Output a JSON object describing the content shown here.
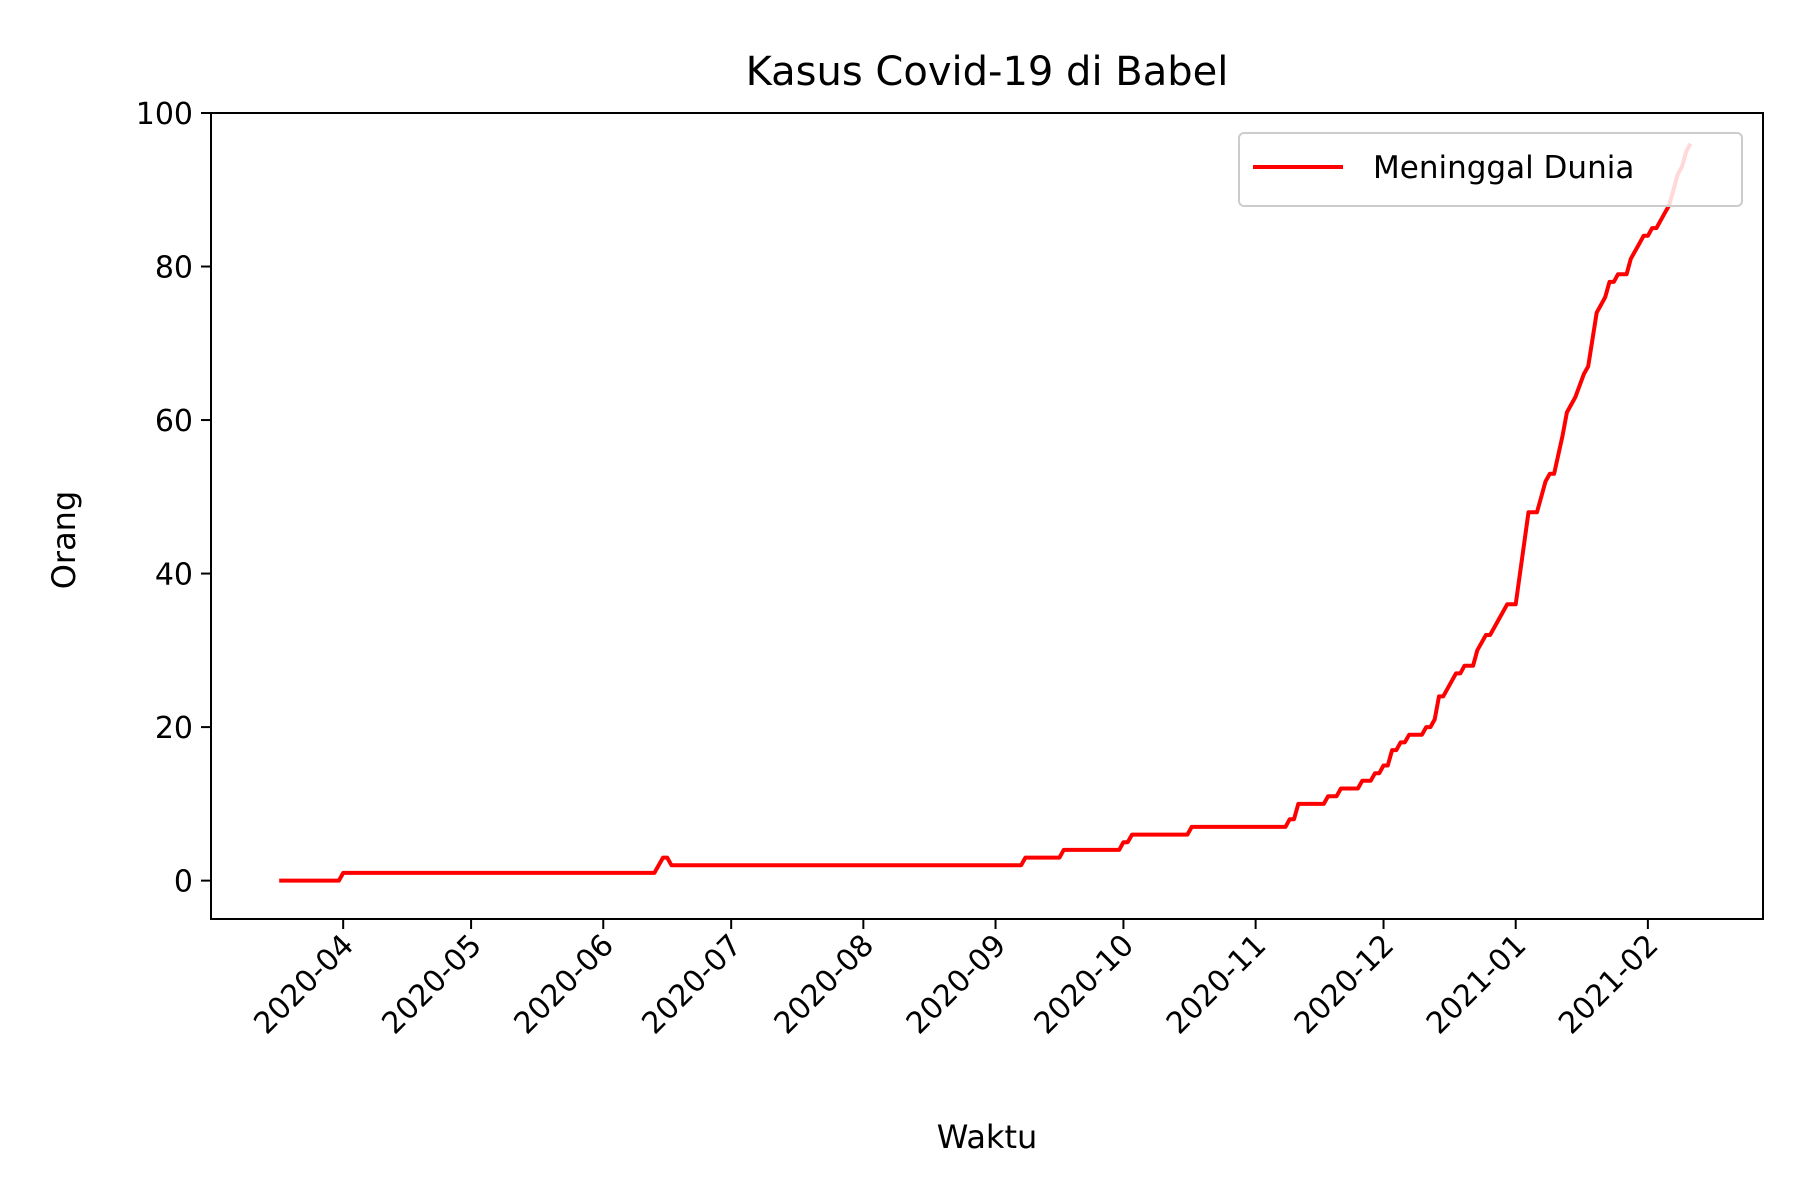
{
  "chart_data": {
    "type": "line",
    "title": "Kasus Covid-19 di Babel",
    "xlabel": "Waktu",
    "ylabel": "Orang",
    "x_range": [
      "2020-03-01",
      "2021-02-28"
    ],
    "ylim": [
      -5,
      100
    ],
    "yticks": [
      0,
      20,
      40,
      60,
      80,
      100
    ],
    "xticks": [
      "2020-04-01",
      "2020-05-01",
      "2020-06-01",
      "2020-07-01",
      "2020-08-01",
      "2020-09-01",
      "2020-10-01",
      "2020-11-01",
      "2020-12-01",
      "2021-01-01",
      "2021-02-01"
    ],
    "xtick_labels": [
      "2020-04",
      "2020-05",
      "2020-06",
      "2020-07",
      "2020-08",
      "2020-09",
      "2020-10",
      "2020-11",
      "2020-12",
      "2021-01",
      "2021-02"
    ],
    "grid": false,
    "legend_position": "top-right",
    "series": [
      {
        "name": "Meninggal Dunia",
        "color": "#ff0000",
        "points": [
          [
            "2020-03-17",
            0
          ],
          [
            "2020-03-31",
            0
          ],
          [
            "2020-04-01",
            1
          ],
          [
            "2020-06-13",
            1
          ],
          [
            "2020-06-15",
            3
          ],
          [
            "2020-06-16",
            3
          ],
          [
            "2020-06-17",
            2
          ],
          [
            "2020-09-07",
            2
          ],
          [
            "2020-09-08",
            3
          ],
          [
            "2020-09-16",
            3
          ],
          [
            "2020-09-17",
            4
          ],
          [
            "2020-09-30",
            4
          ],
          [
            "2020-10-01",
            5
          ],
          [
            "2020-10-02",
            5
          ],
          [
            "2020-10-03",
            6
          ],
          [
            "2020-10-16",
            6
          ],
          [
            "2020-10-17",
            7
          ],
          [
            "2020-11-08",
            7
          ],
          [
            "2020-11-09",
            8
          ],
          [
            "2020-11-10",
            8
          ],
          [
            "2020-11-11",
            10
          ],
          [
            "2020-11-17",
            10
          ],
          [
            "2020-11-18",
            11
          ],
          [
            "2020-11-20",
            11
          ],
          [
            "2020-11-21",
            12
          ],
          [
            "2020-11-25",
            12
          ],
          [
            "2020-11-26",
            13
          ],
          [
            "2020-11-28",
            13
          ],
          [
            "2020-11-29",
            14
          ],
          [
            "2020-11-30",
            14
          ],
          [
            "2020-12-01",
            15
          ],
          [
            "2020-12-02",
            15
          ],
          [
            "2020-12-03",
            17
          ],
          [
            "2020-12-04",
            17
          ],
          [
            "2020-12-05",
            18
          ],
          [
            "2020-12-06",
            18
          ],
          [
            "2020-12-07",
            19
          ],
          [
            "2020-12-10",
            19
          ],
          [
            "2020-12-11",
            20
          ],
          [
            "2020-12-12",
            20
          ],
          [
            "2020-12-13",
            21
          ],
          [
            "2020-12-14",
            24
          ],
          [
            "2020-12-15",
            24
          ],
          [
            "2020-12-16",
            25
          ],
          [
            "2020-12-18",
            27
          ],
          [
            "2020-12-19",
            27
          ],
          [
            "2020-12-20",
            28
          ],
          [
            "2020-12-22",
            28
          ],
          [
            "2020-12-23",
            30
          ],
          [
            "2020-12-25",
            32
          ],
          [
            "2020-12-26",
            32
          ],
          [
            "2020-12-29",
            35
          ],
          [
            "2020-12-30",
            36
          ],
          [
            "2021-01-01",
            36
          ],
          [
            "2021-01-04",
            48
          ],
          [
            "2021-01-06",
            48
          ],
          [
            "2021-01-08",
            52
          ],
          [
            "2021-01-09",
            53
          ],
          [
            "2021-01-10",
            53
          ],
          [
            "2021-01-12",
            58
          ],
          [
            "2021-01-13",
            61
          ],
          [
            "2021-01-15",
            63
          ],
          [
            "2021-01-17",
            66
          ],
          [
            "2021-01-18",
            67
          ],
          [
            "2021-01-20",
            74
          ],
          [
            "2021-01-22",
            76
          ],
          [
            "2021-01-23",
            78
          ],
          [
            "2021-01-24",
            78
          ],
          [
            "2021-01-25",
            79
          ],
          [
            "2021-01-27",
            79
          ],
          [
            "2021-01-28",
            81
          ],
          [
            "2021-01-30",
            83
          ],
          [
            "2021-01-31",
            84
          ],
          [
            "2021-02-01",
            84
          ],
          [
            "2021-02-02",
            85
          ],
          [
            "2021-02-03",
            85
          ],
          [
            "2021-02-05",
            87
          ],
          [
            "2021-02-06",
            88
          ],
          [
            "2021-02-07",
            90
          ],
          [
            "2021-02-08",
            92
          ],
          [
            "2021-02-09",
            93
          ],
          [
            "2021-02-10",
            95
          ],
          [
            "2021-02-11",
            96
          ]
        ]
      }
    ]
  }
}
